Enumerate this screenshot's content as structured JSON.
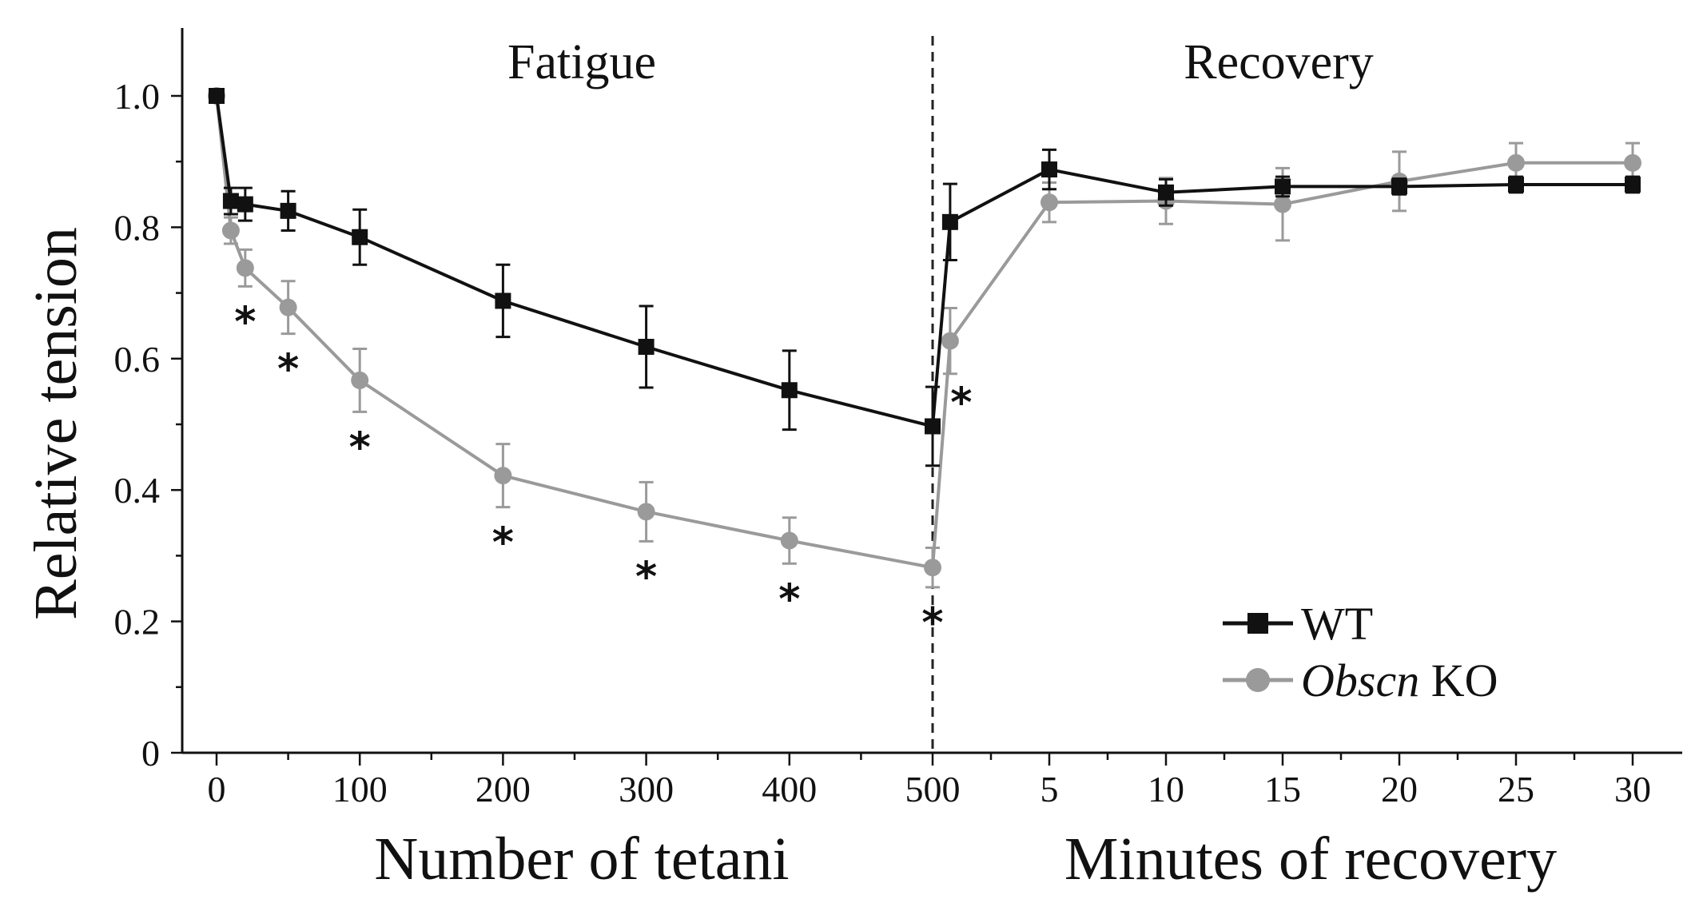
{
  "chart_data": {
    "type": "line",
    "ylabel": "Relative tension",
    "ylim": [
      0,
      1.1
    ],
    "yticks": [
      "0",
      "0.2",
      "0.4",
      "0.6",
      "0.8",
      "1.0"
    ],
    "sections": [
      {
        "name": "Fatigue",
        "xlabel": "Number of tetani",
        "ticks": [
          "0",
          "100",
          "200",
          "300",
          "400",
          "500"
        ]
      },
      {
        "name": "Recovery",
        "xlabel": "Minutes of recovery",
        "ticks": [
          "5",
          "10",
          "15",
          "20",
          "25",
          "30"
        ]
      }
    ],
    "series": [
      {
        "name": "WT",
        "color": "#111111",
        "marker": "square",
        "fatigue": [
          {
            "x": 0,
            "y": 1.0,
            "err": 0.0
          },
          {
            "x": 10,
            "y": 0.84,
            "err": 0.02
          },
          {
            "x": 20,
            "y": 0.835,
            "err": 0.025
          },
          {
            "x": 50,
            "y": 0.825,
            "err": 0.03
          },
          {
            "x": 100,
            "y": 0.785,
            "err": 0.042
          },
          {
            "x": 200,
            "y": 0.688,
            "err": 0.055
          },
          {
            "x": 300,
            "y": 0.618,
            "err": 0.062
          },
          {
            "x": 400,
            "y": 0.552,
            "err": 0.06
          },
          {
            "x": 500,
            "y": 0.497,
            "err": 0.06
          }
        ],
        "recovery": [
          {
            "x": 0.75,
            "y": 0.808,
            "err": 0.058
          },
          {
            "x": 5,
            "y": 0.888,
            "err": 0.03
          },
          {
            "x": 10,
            "y": 0.853,
            "err": 0.02
          },
          {
            "x": 15,
            "y": 0.862,
            "err": 0.015
          },
          {
            "x": 20,
            "y": 0.862,
            "err": 0.012
          },
          {
            "x": 25,
            "y": 0.865,
            "err": 0.012
          },
          {
            "x": 30,
            "y": 0.865,
            "err": 0.012
          }
        ]
      },
      {
        "name": "Obscn KO",
        "name_italic": "Obscn",
        "name_rest": " KO",
        "color": "#9a9a9a",
        "marker": "circle",
        "fatigue": [
          {
            "x": 0,
            "y": 1.0,
            "err": 0.0
          },
          {
            "x": 10,
            "y": 0.795,
            "err": 0.02
          },
          {
            "x": 20,
            "y": 0.738,
            "err": 0.028
          },
          {
            "x": 50,
            "y": 0.678,
            "err": 0.04
          },
          {
            "x": 100,
            "y": 0.567,
            "err": 0.048
          },
          {
            "x": 200,
            "y": 0.422,
            "err": 0.048
          },
          {
            "x": 300,
            "y": 0.367,
            "err": 0.045
          },
          {
            "x": 400,
            "y": 0.323,
            "err": 0.035
          },
          {
            "x": 500,
            "y": 0.282,
            "err": 0.03
          }
        ],
        "recovery": [
          {
            "x": 0.75,
            "y": 0.627,
            "err": 0.05
          },
          {
            "x": 5,
            "y": 0.838,
            "err": 0.03
          },
          {
            "x": 10,
            "y": 0.84,
            "err": 0.035
          },
          {
            "x": 15,
            "y": 0.835,
            "err": 0.055
          },
          {
            "x": 20,
            "y": 0.87,
            "err": 0.045
          },
          {
            "x": 25,
            "y": 0.898,
            "err": 0.03
          },
          {
            "x": 30,
            "y": 0.898,
            "err": 0.03
          }
        ]
      }
    ],
    "significance_markers": [
      {
        "section": "fatigue",
        "x": 20,
        "label": "*"
      },
      {
        "section": "fatigue",
        "x": 50,
        "label": "*"
      },
      {
        "section": "fatigue",
        "x": 100,
        "label": "*"
      },
      {
        "section": "fatigue",
        "x": 200,
        "label": "*"
      },
      {
        "section": "fatigue",
        "x": 300,
        "label": "*"
      },
      {
        "section": "fatigue",
        "x": 400,
        "label": "*"
      },
      {
        "section": "fatigue",
        "x": 500,
        "label": "*"
      },
      {
        "section": "recovery",
        "x": 0.75,
        "label": "*"
      }
    ],
    "legend": {
      "position": "bottom-right"
    }
  }
}
